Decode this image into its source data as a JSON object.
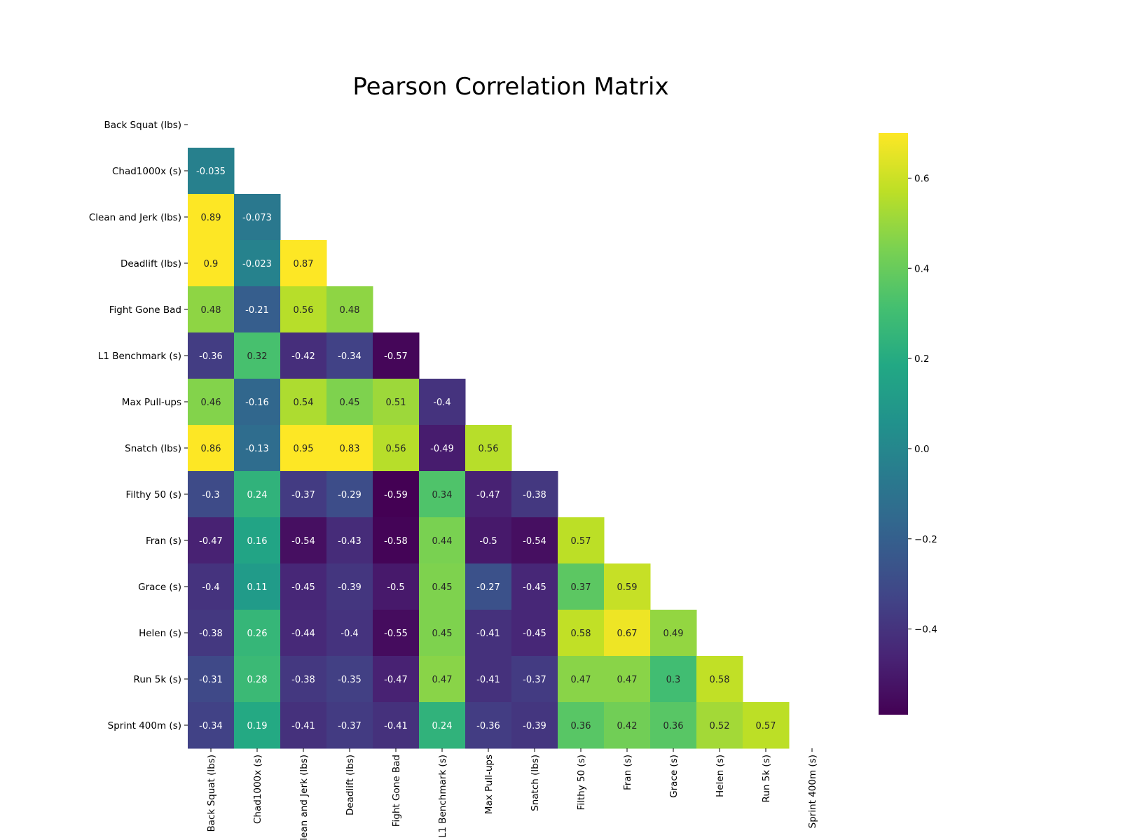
{
  "chart_data": {
    "type": "heatmap",
    "title": "Pearson Correlation Matrix",
    "labels": [
      "Back Squat (lbs)",
      "Chad1000x (s)",
      "Clean and Jerk (lbs)",
      "Deadlift (lbs)",
      "Fight Gone Bad",
      "L1 Benchmark (s)",
      "Max Pull-ups",
      "Snatch (lbs)",
      "Filthy 50 (s)",
      "Fran (s)",
      "Grace (s)",
      "Helen (s)",
      "Run 5k (s)",
      "Sprint 400m (s)"
    ],
    "x_labels": [
      "Back Squat (lbs)",
      "Chad1000x (s)",
      "Clean and Jerk (lbs)",
      "Deadlift (lbs)",
      "Fight Gone Bad",
      "L1 Benchmark (s)",
      "Max Pull-ups",
      "Snatch (lbs)",
      "Filthy 50 (s)",
      "Fran (s)",
      "Grace (s)",
      "Helen (s)",
      "Run 5k (s)",
      "Sprint 400m (s)"
    ],
    "masked": "upper-triangle-including-diagonal",
    "lower_triangle_values": [
      [],
      [
        -0.035
      ],
      [
        0.89,
        -0.073
      ],
      [
        0.9,
        -0.023,
        0.87
      ],
      [
        0.48,
        -0.21,
        0.56,
        0.48
      ],
      [
        -0.36,
        0.32,
        -0.42,
        -0.34,
        -0.57
      ],
      [
        0.46,
        -0.16,
        0.54,
        0.45,
        0.51,
        -0.4
      ],
      [
        0.86,
        -0.13,
        0.95,
        0.83,
        0.56,
        -0.49,
        0.56
      ],
      [
        -0.3,
        0.24,
        -0.37,
        -0.29,
        -0.59,
        0.34,
        -0.47,
        -0.38
      ],
      [
        -0.47,
        0.16,
        -0.54,
        -0.43,
        -0.58,
        0.44,
        -0.5,
        -0.54,
        0.57
      ],
      [
        -0.4,
        0.11,
        -0.45,
        -0.39,
        -0.5,
        0.45,
        -0.27,
        -0.45,
        0.37,
        0.59
      ],
      [
        -0.38,
        0.26,
        -0.44,
        -0.4,
        -0.55,
        0.45,
        -0.41,
        -0.45,
        0.58,
        0.67,
        0.49
      ],
      [
        -0.31,
        0.28,
        -0.38,
        -0.35,
        -0.47,
        0.47,
        -0.41,
        -0.37,
        0.47,
        0.47,
        0.3,
        0.58
      ],
      [
        -0.34,
        0.19,
        -0.41,
        -0.37,
        -0.41,
        0.24,
        -0.36,
        -0.39,
        0.36,
        0.42,
        0.36,
        0.52,
        0.57
      ]
    ],
    "colormap": "viridis",
    "color_range": [
      -0.59,
      0.7
    ],
    "colorbar": {
      "ticks": [
        0.6,
        0.4,
        0.2,
        0.0,
        -0.2,
        -0.4
      ],
      "tick_labels": [
        "0.6",
        "0.4",
        "0.2",
        "0.0",
        "−0.2",
        "−0.4"
      ]
    }
  }
}
